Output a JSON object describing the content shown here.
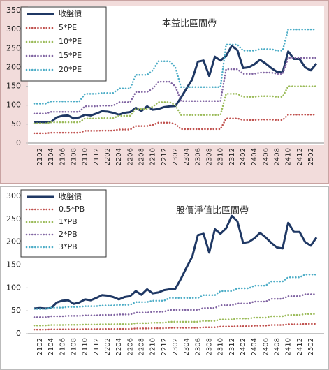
{
  "chart_data": [
    {
      "type": "line",
      "annotation": "本益比區間帶",
      "categories": [
        null,
        "2102",
        null,
        "2104",
        null,
        "2106",
        null,
        "2108",
        null,
        "2110",
        null,
        "2112",
        null,
        "2202",
        null,
        "2204",
        null,
        "2206",
        null,
        "2208",
        null,
        "2210",
        null,
        "2212",
        null,
        "2302",
        null,
        "2304",
        null,
        "2306",
        null,
        "2308",
        null,
        "2310",
        null,
        "2312",
        null,
        "2402",
        null,
        "2404",
        null,
        "2406",
        null,
        "2408",
        null,
        "2410",
        null,
        "2412",
        null,
        "2502",
        null
      ],
      "ylim": [
        0,
        350
      ],
      "yticks": [
        0,
        50,
        100,
        150,
        200,
        250,
        300,
        350
      ],
      "grid": false,
      "series": [
        {
          "name": "收盤價",
          "color": "#1f3864",
          "style": "solid",
          "values": [
            55,
            56,
            55,
            56,
            68,
            72,
            73,
            65,
            68,
            75,
            73,
            78,
            84,
            83,
            80,
            75,
            80,
            82,
            93,
            85,
            97,
            88,
            90,
            95,
            97,
            98,
            120,
            145,
            168,
            215,
            218,
            177,
            228,
            218,
            230,
            257,
            245,
            198,
            200,
            208,
            220,
            210,
            198,
            188,
            186,
            242,
            222,
            222,
            200,
            192,
            210
          ]
        },
        {
          "name": "5*PE",
          "color": "#c0504d",
          "style": "dotted",
          "values": [
            26,
            26,
            26,
            27.5,
            27.5,
            27.5,
            27.5,
            27.5,
            27.5,
            32.5,
            32.5,
            32.5,
            33,
            33,
            33,
            36,
            36,
            36,
            45,
            45,
            45,
            48,
            54,
            54,
            54,
            50,
            37,
            37,
            37,
            37,
            37,
            37,
            37,
            37,
            65,
            65,
            65,
            61,
            61,
            61,
            62,
            62,
            62,
            61,
            61,
            75,
            75,
            75,
            75,
            75,
            75
          ]
        },
        {
          "name": "10*PE",
          "color": "#9bbb59",
          "style": "dotted",
          "values": [
            52,
            52,
            52,
            55,
            55,
            55,
            55,
            55,
            55,
            65,
            65,
            65,
            66,
            66,
            66,
            72,
            72,
            72,
            90,
            90,
            90,
            96,
            108,
            108,
            108,
            100,
            74,
            74,
            74,
            74,
            74,
            74,
            74,
            74,
            130,
            130,
            130,
            122,
            122,
            122,
            124,
            124,
            124,
            122,
            122,
            150,
            150,
            150,
            150,
            150,
            150
          ]
        },
        {
          "name": "15*PE",
          "color": "#8064a2",
          "style": "dotted",
          "values": [
            78,
            78,
            78,
            82.5,
            82.5,
            82.5,
            82.5,
            82.5,
            82.5,
            97.5,
            97.5,
            97.5,
            99,
            99,
            99,
            108,
            108,
            108,
            135,
            135,
            135,
            144,
            162,
            162,
            162,
            150,
            111,
            111,
            111,
            111,
            111,
            111,
            111,
            111,
            195,
            195,
            195,
            183,
            183,
            183,
            186,
            186,
            186,
            183,
            183,
            225,
            225,
            225,
            225,
            225,
            225
          ]
        },
        {
          "name": "20*PE",
          "color": "#4bacc6",
          "style": "dotted",
          "values": [
            104,
            104,
            104,
            110,
            110,
            110,
            110,
            110,
            110,
            130,
            130,
            130,
            132,
            132,
            132,
            144,
            144,
            144,
            180,
            180,
            180,
            192,
            216,
            216,
            216,
            200,
            148,
            148,
            148,
            148,
            148,
            148,
            148,
            148,
            260,
            260,
            260,
            244,
            244,
            244,
            248,
            248,
            248,
            244,
            244,
            300,
            300,
            300,
            300,
            300,
            300
          ]
        }
      ]
    },
    {
      "type": "line",
      "annotation": "股價淨值比區間帶",
      "categories": [
        null,
        "2102",
        null,
        "2104",
        null,
        "2106",
        null,
        "2108",
        null,
        "2110",
        null,
        "2112",
        null,
        "2202",
        null,
        "2204",
        null,
        "2206",
        null,
        "2208",
        null,
        "2210",
        null,
        "2212",
        null,
        "2302",
        null,
        "2304",
        null,
        "2306",
        null,
        "2308",
        null,
        "2310",
        null,
        "2312",
        null,
        "2402",
        null,
        "2404",
        null,
        "2406",
        null,
        "2408",
        null,
        "2410",
        null,
        "2412",
        null,
        "2502",
        null
      ],
      "ylim": [
        0,
        300
      ],
      "yticks": [
        0,
        50,
        100,
        150,
        200,
        250,
        300
      ],
      "grid": false,
      "series": [
        {
          "name": "收盤價",
          "color": "#1f3864",
          "style": "solid",
          "values": [
            55,
            56,
            55,
            56,
            68,
            72,
            73,
            65,
            68,
            75,
            73,
            78,
            84,
            83,
            80,
            75,
            80,
            82,
            93,
            85,
            97,
            88,
            90,
            95,
            97,
            98,
            120,
            145,
            168,
            215,
            218,
            177,
            228,
            218,
            230,
            257,
            245,
            198,
            200,
            208,
            220,
            210,
            198,
            188,
            186,
            242,
            222,
            222,
            200,
            192,
            210
          ]
        },
        {
          "name": "0.5*PB",
          "color": "#c0504d",
          "style": "dotted",
          "values": [
            9,
            9,
            9,
            9.5,
            9.5,
            9.5,
            9.75,
            9.75,
            9.75,
            10,
            10,
            10,
            10.25,
            10.25,
            10.25,
            10.5,
            10.5,
            10.5,
            11.5,
            11.5,
            11.5,
            12,
            12,
            12,
            13,
            13,
            13,
            13,
            13,
            13,
            14,
            14,
            14,
            15.5,
            15.5,
            15.5,
            16.5,
            16.5,
            16.5,
            17.5,
            17.5,
            17.5,
            19,
            19,
            19,
            20.5,
            20.5,
            20.5,
            21.5,
            21.5,
            21.5
          ]
        },
        {
          "name": "1*PB",
          "color": "#9bbb59",
          "style": "dotted",
          "values": [
            18,
            18,
            18,
            19,
            19,
            19,
            19.5,
            19.5,
            19.5,
            20,
            20,
            20,
            20.5,
            20.5,
            20.5,
            21,
            21,
            21,
            23,
            23,
            23,
            24,
            24,
            24,
            26,
            26,
            26,
            26,
            26,
            26,
            28,
            28,
            28,
            31,
            31,
            31,
            33,
            33,
            33,
            35,
            35,
            35,
            38,
            38,
            38,
            41,
            41,
            41,
            43,
            43,
            43
          ]
        },
        {
          "name": "2*PB",
          "color": "#8064a2",
          "style": "dotted",
          "values": [
            36,
            36,
            36,
            38,
            38,
            38,
            39,
            39,
            39,
            40,
            40,
            40,
            41,
            41,
            41,
            42,
            42,
            42,
            46,
            46,
            46,
            48,
            48,
            48,
            52,
            52,
            52,
            52,
            52,
            52,
            56,
            56,
            56,
            62,
            62,
            62,
            66,
            66,
            66,
            70,
            70,
            70,
            76,
            76,
            76,
            82,
            82,
            82,
            86,
            86,
            86
          ]
        },
        {
          "name": "3*PB",
          "color": "#4bacc6",
          "style": "dotted",
          "values": [
            54,
            54,
            54,
            57,
            57,
            57,
            58.5,
            58.5,
            58.5,
            60,
            60,
            60,
            61.5,
            61.5,
            61.5,
            63,
            63,
            63,
            69,
            69,
            69,
            72,
            72,
            72,
            78,
            78,
            78,
            78,
            78,
            78,
            84,
            84,
            84,
            93,
            93,
            93,
            99,
            99,
            99,
            105,
            105,
            105,
            114,
            114,
            114,
            123,
            123,
            123,
            129,
            129,
            129
          ]
        }
      ]
    }
  ]
}
